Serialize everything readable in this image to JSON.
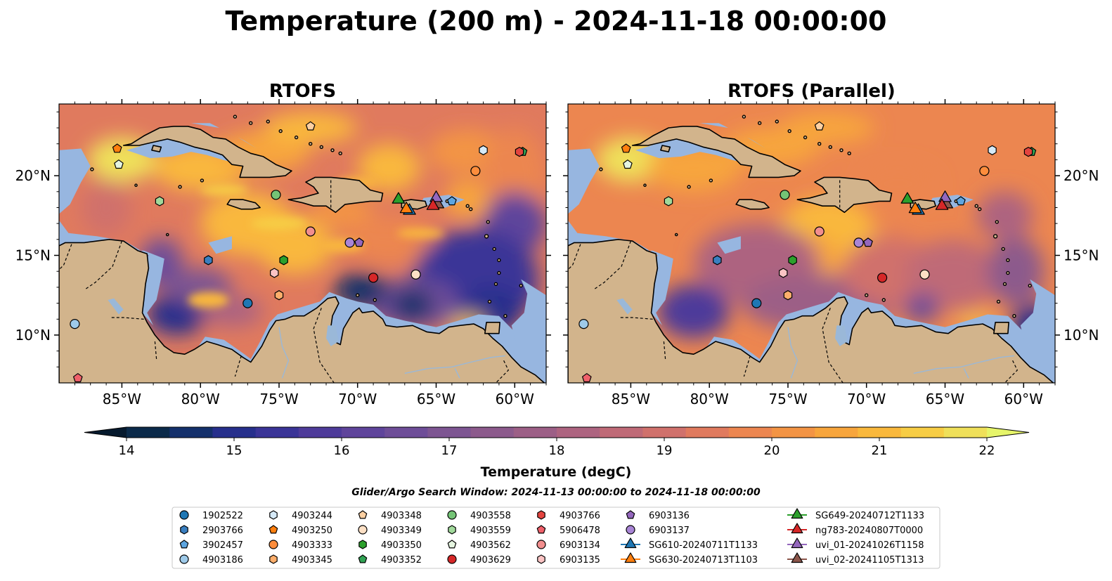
{
  "figure_title": "Temperature (200 m) - 2024-11-18 00:00:00",
  "panels": [
    {
      "title": "RTOFS",
      "variant": "base"
    },
    {
      "title": "RTOFS (Parallel)",
      "variant": "parallel"
    }
  ],
  "map_extent": {
    "lon_min": -89,
    "lon_max": -58,
    "lat_min": 7,
    "lat_max": 24.5
  },
  "lon_ticks": [
    {
      "value": -85,
      "label": "85°W"
    },
    {
      "value": -80,
      "label": "80°W"
    },
    {
      "value": -75,
      "label": "75°W"
    },
    {
      "value": -70,
      "label": "70°W"
    },
    {
      "value": -65,
      "label": "65°W"
    },
    {
      "value": -60,
      "label": "60°W"
    }
  ],
  "lat_ticks": [
    {
      "value": 20,
      "label": "20°N"
    },
    {
      "value": 15,
      "label": "15°N"
    },
    {
      "value": 10,
      "label": "10°N"
    }
  ],
  "colorbar": {
    "label": "Temperature (degC)",
    "min": 14,
    "max": 22,
    "step": 0.5,
    "ticks": [
      "14",
      "15",
      "16",
      "17",
      "18",
      "19",
      "20",
      "21",
      "22"
    ],
    "colors": [
      "#0b2a4a",
      "#14306b",
      "#262f8c",
      "#3a3497",
      "#4e3b9a",
      "#5f449b",
      "#6e4d98",
      "#7d5592",
      "#8c5a8c",
      "#9c5f86",
      "#ad6480",
      "#bf6a77",
      "#d0716c",
      "#e07a5e",
      "#ec8650",
      "#f39444",
      "#f7a53c",
      "#f9b83c",
      "#f7cd45",
      "#efe05a"
    ],
    "under_color": "#061a2e",
    "over_color": "#e6f56a"
  },
  "search_window_text": "Glider/Argo Search Window: 2024-11-13 00:00:00 to 2024-11-18 00:00:00",
  "colors": {
    "land": "#d2b48c",
    "shelf": "#97b6e0",
    "deep": "#071e33",
    "coast": "#000000"
  },
  "legend": [
    {
      "label": "1902522",
      "marker": "circle",
      "color": "#1f77b4"
    },
    {
      "label": "2903766",
      "marker": "hexagon",
      "color": "#3a7fc0"
    },
    {
      "label": "3902457",
      "marker": "pentagon",
      "color": "#5da5e0"
    },
    {
      "label": "4903186",
      "marker": "circle",
      "color": "#9ecae9"
    },
    {
      "label": "4903244",
      "marker": "hexagon",
      "color": "#d6eaf8"
    },
    {
      "label": "4903250",
      "marker": "pentagon",
      "color": "#ff7f0e"
    },
    {
      "label": "4903333",
      "marker": "circle",
      "color": "#fd8d3c"
    },
    {
      "label": "4903345",
      "marker": "hexagon",
      "color": "#fdae6b"
    },
    {
      "label": "4903348",
      "marker": "pentagon",
      "color": "#fdd0a2"
    },
    {
      "label": "4903349",
      "marker": "circle",
      "color": "#fde0c5"
    },
    {
      "label": "4903350",
      "marker": "hexagon",
      "color": "#2ca02c"
    },
    {
      "label": "4903352",
      "marker": "pentagon",
      "color": "#31a354"
    },
    {
      "label": "4903558",
      "marker": "circle",
      "color": "#74c476"
    },
    {
      "label": "4903559",
      "marker": "hexagon",
      "color": "#a1d99b"
    },
    {
      "label": "4903562",
      "marker": "pentagon",
      "color": "#e5f5e0"
    },
    {
      "label": "4903629",
      "marker": "circle",
      "color": "#d62728"
    },
    {
      "label": "4903766",
      "marker": "hexagon",
      "color": "#e3443f"
    },
    {
      "label": "5906478",
      "marker": "pentagon",
      "color": "#f0606a"
    },
    {
      "label": "6903134",
      "marker": "circle",
      "color": "#f28e8e"
    },
    {
      "label": "6903135",
      "marker": "hexagon",
      "color": "#fbc4c4"
    },
    {
      "label": "6903136",
      "marker": "pentagon",
      "color": "#9467bd"
    },
    {
      "label": "6903137",
      "marker": "circle",
      "color": "#a985d6"
    },
    {
      "label": "SG610-20240711T1133",
      "marker": "triangle",
      "color": "#1f77b4"
    },
    {
      "label": "SG630-20240713T1103",
      "marker": "triangle",
      "color": "#ff7f0e"
    },
    {
      "label": "SG649-20240712T1133",
      "marker": "triangle",
      "color": "#2ca02c"
    },
    {
      "label": "ng783-20240807T0000",
      "marker": "triangle",
      "color": "#d62728"
    },
    {
      "label": "uvi_01-20241026T1158",
      "marker": "triangle",
      "color": "#9467bd"
    },
    {
      "label": "uvi_02-20241105T1313",
      "marker": "triangle",
      "color": "#8c564b"
    }
  ],
  "observations": [
    {
      "id": "1902522",
      "lon": -77.0,
      "lat": 12.0
    },
    {
      "id": "2903766",
      "lon": -79.5,
      "lat": 14.7
    },
    {
      "id": "3902457",
      "lon": -64.0,
      "lat": 18.4
    },
    {
      "id": "4903186",
      "lon": -88.0,
      "lat": 10.7
    },
    {
      "id": "4903244",
      "lon": -62.0,
      "lat": 21.6
    },
    {
      "id": "4903250",
      "lon": -85.3,
      "lat": 21.7
    },
    {
      "id": "4903333",
      "lon": -62.5,
      "lat": 20.3
    },
    {
      "id": "4903345",
      "lon": -75.0,
      "lat": 12.5
    },
    {
      "id": "4903348",
      "lon": -73.0,
      "lat": 23.1
    },
    {
      "id": "4903349",
      "lon": -66.3,
      "lat": 13.8
    },
    {
      "id": "4903350",
      "lon": -74.7,
      "lat": 14.7
    },
    {
      "id": "4903352",
      "lon": -59.5,
      "lat": 21.5
    },
    {
      "id": "4903558",
      "lon": -75.2,
      "lat": 18.8
    },
    {
      "id": "4903559",
      "lon": -82.6,
      "lat": 18.4
    },
    {
      "id": "4903562",
      "lon": -85.2,
      "lat": 20.7
    },
    {
      "id": "4903629",
      "lon": -69.0,
      "lat": 13.6
    },
    {
      "id": "4903766",
      "lon": -59.7,
      "lat": 21.5
    },
    {
      "id": "5906478",
      "lon": -87.8,
      "lat": 7.3
    },
    {
      "id": "6903134",
      "lon": -73.0,
      "lat": 16.5
    },
    {
      "id": "6903135",
      "lon": -75.3,
      "lat": 13.9
    },
    {
      "id": "6903136",
      "lon": -69.9,
      "lat": 15.8
    },
    {
      "id": "6903137",
      "lon": -70.5,
      "lat": 15.8
    },
    {
      "id": "SG610-20240711T1133",
      "lon": -66.7,
      "lat": 17.8
    },
    {
      "id": "SG630-20240713T1103",
      "lon": -66.9,
      "lat": 17.9
    },
    {
      "id": "SG649-20240712T1133",
      "lon": -67.4,
      "lat": 18.5
    },
    {
      "id": "uvi_02-20241105T1313",
      "lon": -64.9,
      "lat": 18.2
    },
    {
      "id": "uvi_01-20241026T1158",
      "lon": -65.0,
      "lat": 18.6
    },
    {
      "id": "ng783-20240807T0000",
      "lon": -65.2,
      "lat": 18.1
    }
  ]
}
